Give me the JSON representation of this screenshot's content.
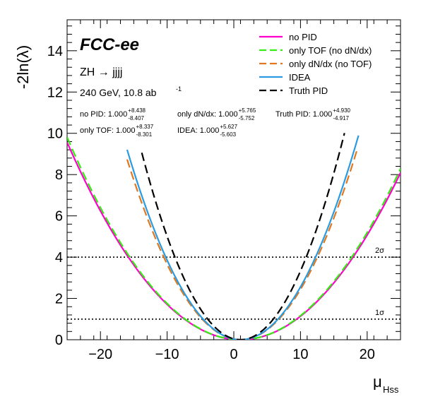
{
  "chart_data": {
    "type": "line",
    "xlabel": "μ",
    "xlabel_sub": "Hss",
    "ylabel": "-2ln(λ)",
    "xlim": [
      -25,
      25
    ],
    "ylim": [
      0,
      15.5
    ],
    "xticks": [
      -20,
      -10,
      0,
      10,
      20
    ],
    "yticks": [
      0,
      2,
      4,
      6,
      8,
      10,
      12,
      14
    ],
    "brand": "FCC-ee",
    "process": "ZH → jjjj",
    "energy_lumi": "240 GeV, 10.8 ab",
    "energy_lumi_sup": "-1",
    "legend_position": "top-right",
    "series": [
      {
        "name": "no PID",
        "color": "#ff00cc",
        "dash": "solid",
        "center": 1.0,
        "sigma_up": 8.438,
        "sigma_down": 8.407,
        "x_range": [
          -25,
          25
        ]
      },
      {
        "name": "only TOF (no dN/dx)",
        "color": "#33ee11",
        "dash": "dashed",
        "center": 1.0,
        "sigma_up": 8.337,
        "sigma_down": 8.301,
        "x_range": [
          -25,
          25
        ]
      },
      {
        "name": "only dN/dx (no TOF)",
        "color": "#e07820",
        "dash": "dashed",
        "center": 1.0,
        "sigma_up": 5.765,
        "sigma_down": 5.752,
        "x_range": [
          -16,
          18.5
        ]
      },
      {
        "name": "IDEA",
        "color": "#2a9be0",
        "dash": "solid",
        "center": 1.0,
        "sigma_up": 5.627,
        "sigma_down": 5.603,
        "x_range": [
          -16,
          18.7
        ]
      },
      {
        "name": "Truth PID",
        "color": "#000000",
        "dash": "dashed",
        "center": 1.0,
        "sigma_up": 4.93,
        "sigma_down": 4.917,
        "x_range": [
          -13.8,
          16.6
        ]
      }
    ],
    "results": [
      {
        "label": "no PID: 1.000",
        "up": "+8.438",
        "down": "-8.407"
      },
      {
        "label": "only dN/dx: 1.000",
        "up": "+5.765",
        "down": "-5.752"
      },
      {
        "label": "Truth PID: 1.000",
        "up": "+4.930",
        "down": "-4.917"
      },
      {
        "label": "only TOF: 1.000",
        "up": "+8.337",
        "down": "-8.301"
      },
      {
        "label": "IDEA: 1.000",
        "up": "+5.627",
        "down": "-5.603"
      }
    ],
    "reference_lines": [
      {
        "y": 4,
        "label": "2σ"
      },
      {
        "y": 1,
        "label": "1σ"
      }
    ]
  }
}
